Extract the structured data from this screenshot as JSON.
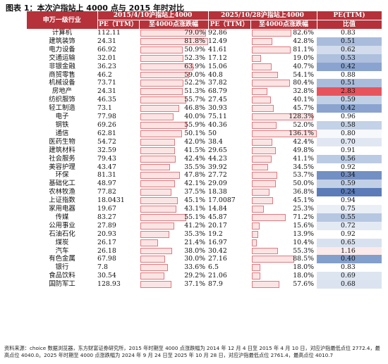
{
  "title": "图表 1：本次沪指站上 4000 点与 2015 年时对比",
  "header": {
    "industry": "申万一级行业",
    "group2015": "2015/4/10沪指站上4000",
    "group2025": "2025/10/28沪指站上4000",
    "pe_col": "PE(TTM)",
    "pe_sub": "比值",
    "pe_label": "PE（TTM）",
    "rise_label": "至4000点涨跌幅"
  },
  "rows": [
    {
      "name": "计算机",
      "pe15": "112.11",
      "r15": "79.0%",
      "r15v": 79.0,
      "pe25": "92.86",
      "r25": "82.6%",
      "r25v": 82.6,
      "ratio": "0.83",
      "color": "#ffffff"
    },
    {
      "name": "建筑装饰",
      "pe15": "24.31",
      "r15": "81.8%",
      "r15v": 81.8,
      "pe25": "12.49",
      "r25": "42.8%",
      "r25v": 42.8,
      "ratio": "0.51",
      "color": "#a9bcdc"
    },
    {
      "name": "电力设备",
      "pe15": "66.92",
      "r15": "50.9%",
      "r15v": 50.9,
      "pe25": "41.61",
      "r25": "81.1%",
      "r25v": 81.1,
      "ratio": "0.62",
      "color": "#d2dcec"
    },
    {
      "name": "交通运输",
      "pe15": "32.01",
      "r15": "52.3%",
      "r15v": 52.3,
      "pe25": "17.12",
      "r25": "19.0%",
      "r25v": 19.0,
      "ratio": "0.53",
      "color": "#aec0de"
    },
    {
      "name": "非银金融",
      "pe15": "36.23",
      "r15": "63.9%",
      "r15v": 63.9,
      "pe25": "15.06",
      "r25": "40.7%",
      "r25v": 40.7,
      "ratio": "0.42",
      "color": "#8aa4cf"
    },
    {
      "name": "商贸零售",
      "pe15": "46.2",
      "r15": "59.0%",
      "r15v": 59.0,
      "pe25": "40.8",
      "r25": "54.1%",
      "r25v": 54.1,
      "ratio": "0.88",
      "color": "#ffffff"
    },
    {
      "name": "机械设备",
      "pe15": "73.71",
      "r15": "52.2%",
      "r15v": 52.2,
      "pe25": "37.82",
      "r25": "80.4%",
      "r25v": 80.4,
      "ratio": "0.51",
      "color": "#a9bcdc"
    },
    {
      "name": "房地产",
      "pe15": "24.31",
      "r15": "51.3%",
      "r15v": 51.3,
      "pe25": "68.79",
      "r25": "32.8%",
      "r25v": 32.8,
      "ratio": "2.83",
      "color": "#e8545c"
    },
    {
      "name": "纺织服饰",
      "pe15": "46.35",
      "r15": "55.7%",
      "r15v": 55.7,
      "pe25": "27.45",
      "r25": "40.1%",
      "r25v": 40.1,
      "ratio": "0.59",
      "color": "#c2d0e6"
    },
    {
      "name": "轻工制造",
      "pe15": "73.1",
      "r15": "46.8%",
      "r15v": 46.8,
      "pe25": "30.93",
      "r25": "45.7%",
      "r25v": 45.7,
      "ratio": "0.42",
      "color": "#8aa4cf"
    },
    {
      "name": "电子",
      "pe15": "77.98",
      "r15": "40.0%",
      "r15v": 40.0,
      "pe25": "75.11",
      "r25": "128.3%",
      "r25v": 128.3,
      "ratio": "0.96",
      "color": "#ffffff"
    },
    {
      "name": "钢铁",
      "pe15": "69.26",
      "r15": "55.9%",
      "r15v": 55.9,
      "pe25": "40.36",
      "r25": "52.0%",
      "r25v": 52.0,
      "ratio": "0.58",
      "color": "#c4d2e7"
    },
    {
      "name": "通信",
      "pe15": "62.81",
      "r15": "50.1%",
      "r15v": 50.1,
      "pe25": "50",
      "r25": "136.1%",
      "r25v": 136.1,
      "ratio": "0.80",
      "color": "#f6f8fb"
    },
    {
      "name": "医药生物",
      "pe15": "54.72",
      "r15": "42.0%",
      "r15v": 42.0,
      "pe25": "38.4",
      "r25": "42.4%",
      "r25v": 42.4,
      "ratio": "0.70",
      "color": "#e0e7f2"
    },
    {
      "name": "建筑材料",
      "pe15": "32.59",
      "r15": "41.5%",
      "r15v": 41.5,
      "pe25": "29.65",
      "r25": "49.8%",
      "r25v": 49.8,
      "ratio": "0.91",
      "color": "#ffffff"
    },
    {
      "name": "社会服务",
      "pe15": "79.43",
      "r15": "42.4%",
      "r15v": 42.4,
      "pe25": "44.23",
      "r25": "41.1%",
      "r25v": 41.1,
      "ratio": "0.56",
      "color": "#bccbe4"
    },
    {
      "name": "美容护理",
      "pe15": "43.47",
      "r15": "35.5%",
      "r15v": 35.5,
      "pe25": "39.92",
      "r25": "34.5%",
      "r25v": 34.5,
      "ratio": "0.92",
      "color": "#ffffff"
    },
    {
      "name": "环保",
      "pe15": "81.31",
      "r15": "47.8%",
      "r15v": 47.8,
      "pe25": "27.72",
      "r25": "53.7%",
      "r25v": 53.7,
      "ratio": "0.34",
      "color": "#7390c4"
    },
    {
      "name": "基础化工",
      "pe15": "48.97",
      "r15": "42.1%",
      "r15v": 42.1,
      "pe25": "29.09",
      "r25": "50.0%",
      "r25v": 50.0,
      "ratio": "0.59",
      "color": "#c2d0e6"
    },
    {
      "name": "农林牧渔",
      "pe15": "77.82",
      "r15": "37.5%",
      "r15v": 37.5,
      "pe25": "18.38",
      "r25": "36.8%",
      "r25v": 36.8,
      "ratio": "0.24",
      "color": "#5b7cb9"
    },
    {
      "name": "上证指数",
      "pe15": "18.0431",
      "r15": "45.1%",
      "r15v": 45.1,
      "pe25": "17.0087",
      "r25": "45.1%",
      "r25v": 45.1,
      "ratio": "0.94",
      "color": "#ffffff"
    },
    {
      "name": "家用电器",
      "pe15": "19.67",
      "r15": "43.1%",
      "r15v": 43.1,
      "pe25": "14.84",
      "r25": "25.3%",
      "r25v": 25.3,
      "ratio": "0.75",
      "color": "#eaeff6"
    },
    {
      "name": "传媒",
      "pe15": "83.27",
      "r15": "55.1%",
      "r15v": 55.1,
      "pe25": "45.87",
      "r25": "71.2%",
      "r25v": 71.2,
      "ratio": "0.55",
      "color": "#b6c7e2"
    },
    {
      "name": "公用事业",
      "pe15": "27.89",
      "r15": "41.2%",
      "r15v": 41.2,
      "pe25": "20.17",
      "r25": "15.6%",
      "r25v": 15.6,
      "ratio": "0.72",
      "color": "#e4eaf4"
    },
    {
      "name": "石油石化",
      "pe15": "20.93",
      "r15": "35.3%",
      "r15v": 35.3,
      "pe25": "19.2",
      "r25": "13.9%",
      "r25v": 13.9,
      "ratio": "0.92",
      "color": "#ffffff"
    },
    {
      "name": "煤炭",
      "pe15": "26.17",
      "r15": "21.4%",
      "r15v": 21.4,
      "pe25": "16.97",
      "r25": "10.4%",
      "r25v": 10.4,
      "ratio": "0.65",
      "color": "#d8e1ef"
    },
    {
      "name": "汽车",
      "pe15": "26.18",
      "r15": "38.0%",
      "r15v": 38.0,
      "pe25": "30.42",
      "r25": "55.3%",
      "r25v": 55.3,
      "ratio": "1.16",
      "color": "#fbeaea"
    },
    {
      "name": "有色金属",
      "pe15": "67.98",
      "r15": "30.0%",
      "r15v": 30.0,
      "pe25": "27.16",
      "r25": "88.5%",
      "r25v": 88.5,
      "ratio": "0.40",
      "color": "#839fcc"
    },
    {
      "name": "银行",
      "pe15": "7.8",
      "r15": "33.6%",
      "r15v": 33.6,
      "pe25": "6.5",
      "r25": "18.0%",
      "r25v": 18.0,
      "ratio": "0.83",
      "color": "#ffffff"
    },
    {
      "name": "食品饮料",
      "pe15": "30.54",
      "r15": "29.2%",
      "r15v": 29.2,
      "pe25": "21.06",
      "r25": "18.0%",
      "r25v": 18.0,
      "ratio": "0.69",
      "color": "#dde5f1"
    },
    {
      "name": "国防军工",
      "pe15": "128.93",
      "r15": "37.1%",
      "r15v": 37.1,
      "pe25": "87.9",
      "r25": "57.6%",
      "r25v": 57.6,
      "ratio": "0.68",
      "color": "#dbe3f0"
    }
  ],
  "note": "资料来源：choice 数据浏览器，东方财富证券研究所，2015 年时期至 4000 点涨跌幅为 2014 年 12 月 4 日至 2015 年 4 月 10 日，对应沪指最低点位 2772.4，最高点位 4040.0。2025 年时期至 4000 点涨跌幅为 2024 年 9 月 24 日至 2025 年 10 月 28 日，对应沪指最低点位 2761.4，最高点位 4010.7"
}
